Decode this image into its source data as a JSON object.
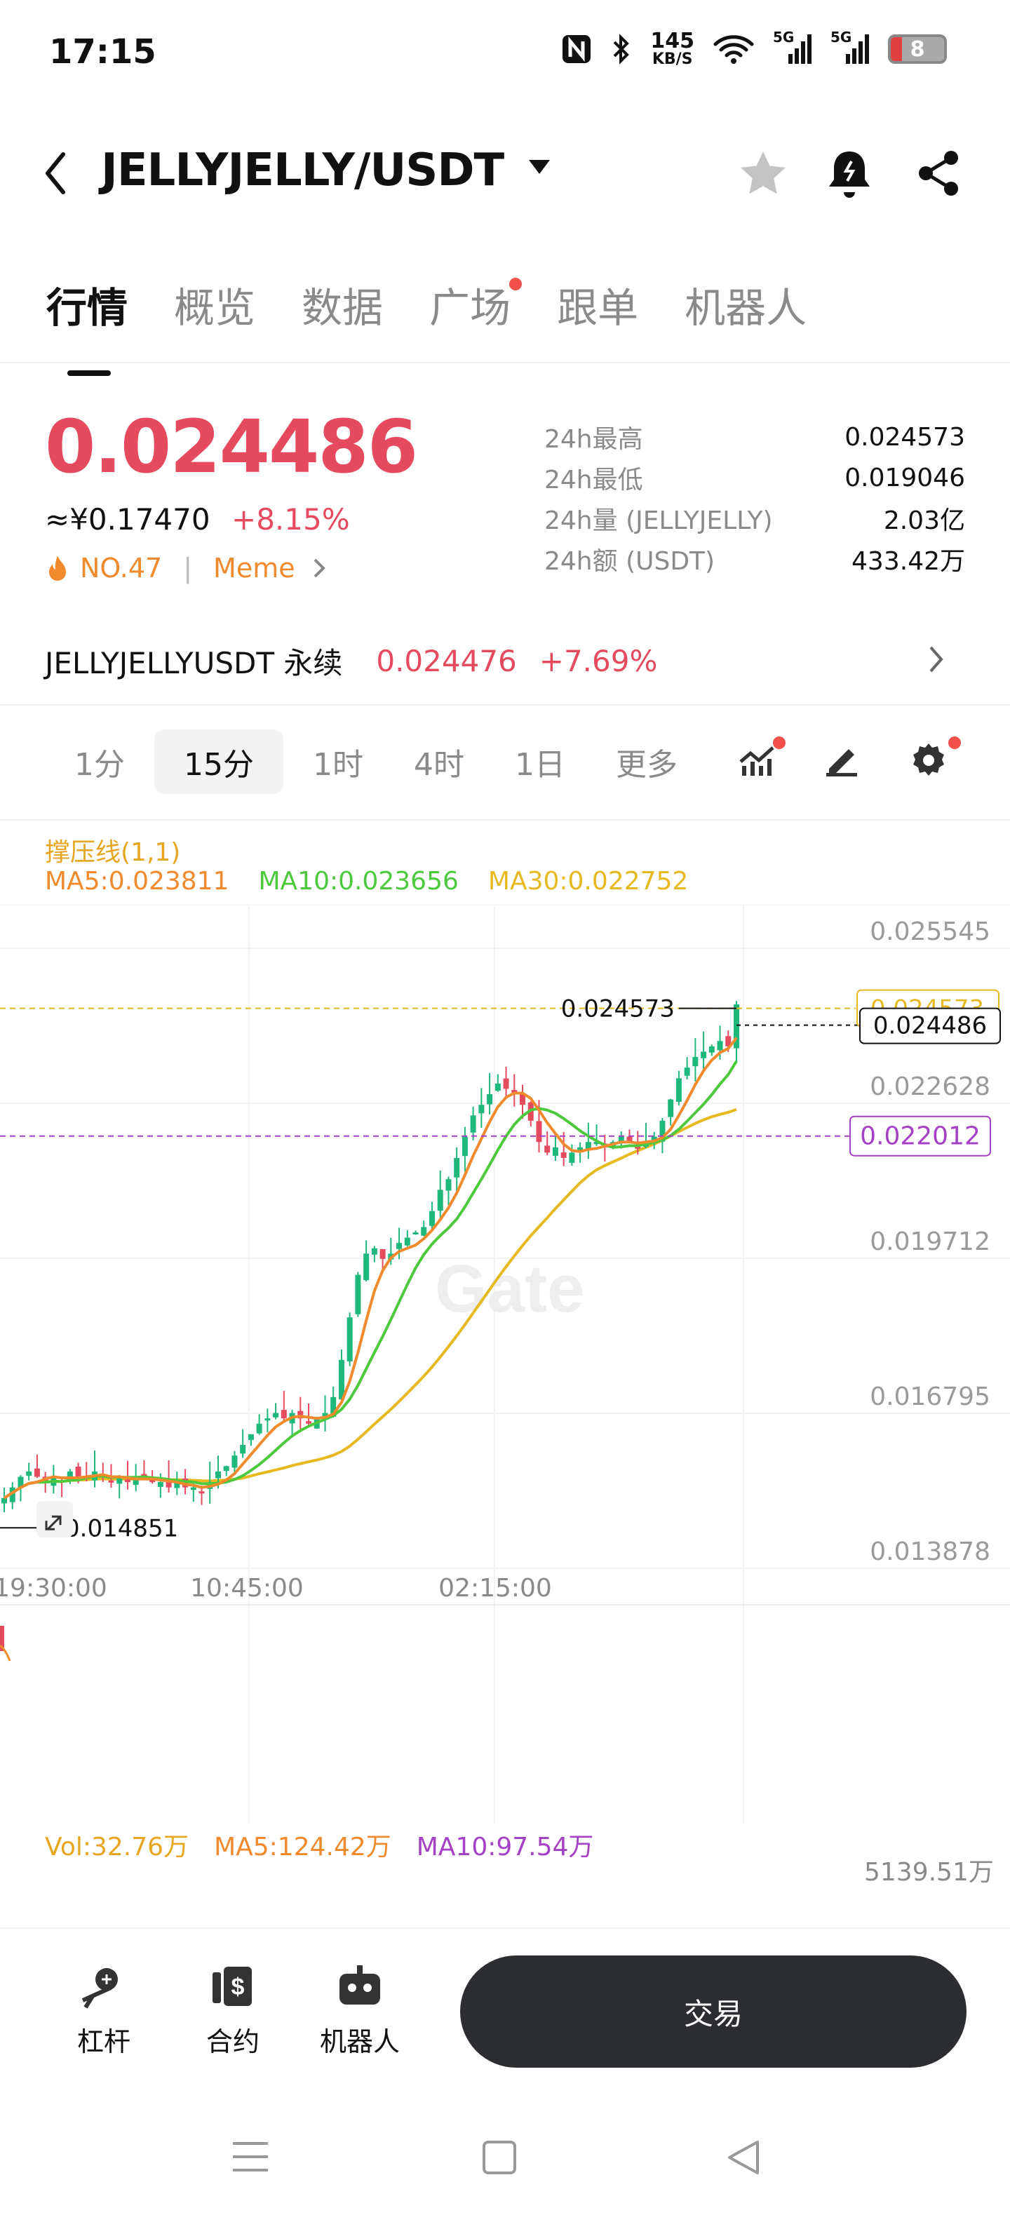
{
  "status_bar": {
    "time": "17:15",
    "speed_value": "145",
    "speed_unit": "KB/S",
    "network_1": "5G",
    "network_2": "5G",
    "battery": "8"
  },
  "header": {
    "pair": "JELLYJELLY/USDT",
    "icons": [
      "back-arrow-icon",
      "dropdown-caret-icon",
      "star-icon",
      "price-alert-bell-icon",
      "share-icon"
    ]
  },
  "tabs": [
    {
      "label": "行情",
      "active": true
    },
    {
      "label": "概览"
    },
    {
      "label": "数据"
    },
    {
      "label": "广场",
      "dot": true
    },
    {
      "label": "跟单"
    },
    {
      "label": "机器人"
    }
  ],
  "price": {
    "last": "0.024486",
    "cny": "≈¥0.17470",
    "change": "+8.15%",
    "rank": "NO.47",
    "tag": "Meme",
    "color_up": "#e64a5f"
  },
  "stats": [
    {
      "k": "24h最高",
      "v": "0.024573"
    },
    {
      "k": "24h最低",
      "v": "0.019046"
    },
    {
      "k": "24h量 (JELLYJELLY)",
      "v": "2.03亿"
    },
    {
      "k": "24h额 (USDT)",
      "v": "433.42万"
    }
  ],
  "perpetual": {
    "name": "JELLYJELLYUSDT 永续",
    "price": "0.024476",
    "change": "+7.69%"
  },
  "intervals": [
    "1分",
    "15分",
    "1时",
    "4时",
    "1日",
    "更多"
  ],
  "active_interval": "15分",
  "indicators": {
    "title": "撑压线(1,1)",
    "ma5": "MA5:0.023811",
    "ma10": "MA10:0.023656",
    "ma30": "MA30:0.022752",
    "colors": {
      "ma5": "#f08a2c",
      "ma10": "#4cc93c",
      "ma30": "#e7b921"
    }
  },
  "chart_data": {
    "type": "candlestick",
    "y_ticks": [
      "0.025545",
      "0.022628",
      "0.019712",
      "0.016795",
      "0.013878"
    ],
    "x_ticks": [
      "19:30:00",
      "10:45:00",
      "02:15:00"
    ],
    "high_label": "0.024573",
    "low_label": "0.014851",
    "last_label": "0.024486",
    "support_label": "0.022012",
    "hidden_label": "0.024573",
    "watermark": "Gate",
    "close_series": [
      0.0152,
      0.0154,
      0.0156,
      0.0157,
      0.0156,
      0.0155,
      0.0156,
      0.0155,
      0.0157,
      0.0156,
      0.0156,
      0.0157,
      0.0156,
      0.0155,
      0.0156,
      0.0155,
      0.0156,
      0.0156,
      0.0155,
      0.0155,
      0.0154,
      0.0155,
      0.0154,
      0.0154,
      0.0153,
      0.0155,
      0.0157,
      0.0158,
      0.016,
      0.0162,
      0.0164,
      0.0166,
      0.0167,
      0.0168,
      0.0167,
      0.0168,
      0.0167,
      0.0166,
      0.0167,
      0.0168,
      0.0171,
      0.0178,
      0.0186,
      0.0194,
      0.0198,
      0.0199,
      0.0197,
      0.0198,
      0.02,
      0.0201,
      0.0202,
      0.0203,
      0.0206,
      0.021,
      0.0212,
      0.0216,
      0.022,
      0.0224,
      0.0226,
      0.0228,
      0.023,
      0.0229,
      0.0228,
      0.0226,
      0.0223,
      0.0219,
      0.0217,
      0.0218,
      0.0216,
      0.0217,
      0.0218,
      0.0219,
      0.0219,
      0.0218,
      0.0219,
      0.022,
      0.0219,
      0.0218,
      0.0219,
      0.022,
      0.0223,
      0.0227,
      0.0231,
      0.0233,
      0.0235,
      0.0236,
      0.0237,
      0.0238,
      0.0237,
      0.02449
    ]
  },
  "volume": {
    "vol": "Vol:32.76万",
    "ma5": "MA5:124.42万",
    "ma10": "MA10:97.54万",
    "axis_max": "5139.51万"
  },
  "bottom": {
    "leverage": "杠杆",
    "contract": "合约",
    "robot": "机器人",
    "trade": "交易"
  }
}
